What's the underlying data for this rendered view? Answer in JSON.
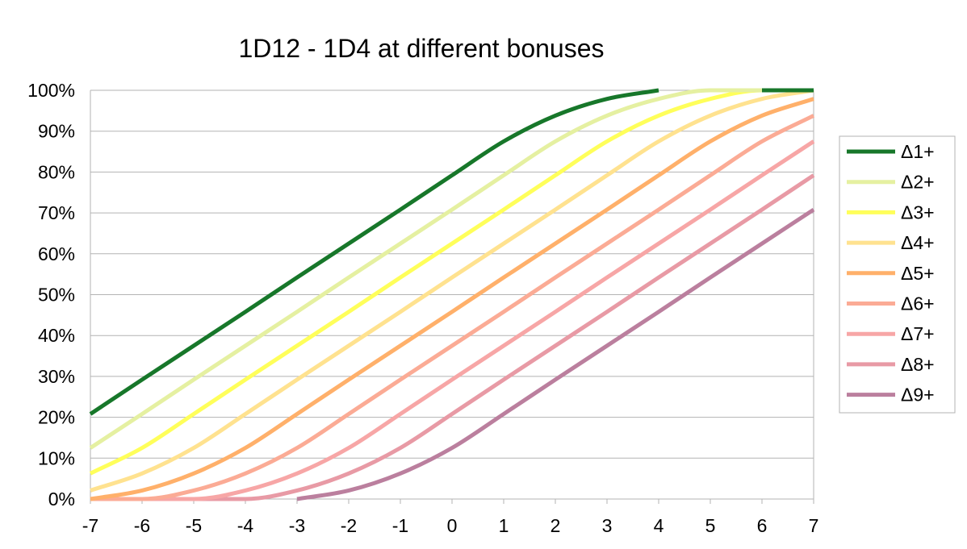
{
  "chart_data": {
    "type": "line",
    "title": "1D12 - 1D4 at different bonuses",
    "xlabel": "",
    "ylabel": "",
    "x": [
      -7,
      -6,
      -5,
      -4,
      -3,
      -2,
      -1,
      0,
      1,
      2,
      3,
      4,
      5,
      6,
      7
    ],
    "x_tick_labels": [
      "-7",
      "-6",
      "-5",
      "-4",
      "-3",
      "-2",
      "-1",
      "0",
      "1",
      "2",
      "3",
      "4",
      "5",
      "6",
      "7"
    ],
    "y_tick_labels": [
      "0%",
      "10%",
      "20%",
      "30%",
      "40%",
      "50%",
      "60%",
      "70%",
      "80%",
      "90%",
      "100%"
    ],
    "xlim": [
      -7,
      7
    ],
    "ylim": [
      0,
      100
    ],
    "grid": "horizontal",
    "legend_position": "right",
    "series": [
      {
        "name": "Δ1+",
        "color": "#17772a",
        "values": [
          20.8,
          29.2,
          37.5,
          45.8,
          54.2,
          62.5,
          70.8,
          79.2,
          87.5,
          93.8,
          97.9,
          100,
          null,
          100,
          100
        ]
      },
      {
        "name": "Δ2+",
        "color": "#e5f0a1",
        "values": [
          12.5,
          20.8,
          29.2,
          37.5,
          45.8,
          54.2,
          62.5,
          70.8,
          79.2,
          87.5,
          93.8,
          97.9,
          100,
          100,
          100
        ]
      },
      {
        "name": "Δ3+",
        "color": "#ffff5a",
        "values": [
          6.25,
          12.5,
          20.8,
          29.2,
          37.5,
          45.8,
          54.2,
          62.5,
          70.8,
          79.2,
          87.5,
          93.8,
          97.9,
          100,
          100
        ]
      },
      {
        "name": "Δ4+",
        "color": "#ffe28f",
        "values": [
          2.08,
          6.25,
          12.5,
          20.8,
          29.2,
          37.5,
          45.8,
          54.2,
          62.5,
          70.8,
          79.2,
          87.5,
          93.8,
          97.9,
          100
        ]
      },
      {
        "name": "Δ5+",
        "color": "#ffb06a",
        "values": [
          0,
          2.08,
          6.25,
          12.5,
          20.8,
          29.2,
          37.5,
          45.8,
          54.2,
          62.5,
          70.8,
          79.2,
          87.5,
          93.8,
          97.9
        ]
      },
      {
        "name": "Δ6+",
        "color": "#fbab95",
        "values": [
          0,
          0,
          2.08,
          6.25,
          12.5,
          20.8,
          29.2,
          37.5,
          45.8,
          54.2,
          62.5,
          70.8,
          79.2,
          87.5,
          93.8
        ]
      },
      {
        "name": "Δ7+",
        "color": "#f7a6a6",
        "values": [
          0,
          0,
          0,
          2.08,
          6.25,
          12.5,
          20.8,
          29.2,
          37.5,
          45.8,
          54.2,
          62.5,
          70.8,
          79.2,
          87.5
        ]
      },
      {
        "name": "Δ8+",
        "color": "#e89aa5",
        "values": [
          0,
          0,
          0,
          0,
          2.08,
          6.25,
          12.5,
          20.8,
          29.2,
          37.5,
          45.8,
          54.2,
          62.5,
          70.8,
          79.2
        ]
      },
      {
        "name": "Δ9+",
        "color": "#bb7f9e",
        "values": [
          null,
          null,
          null,
          null,
          0,
          2.08,
          6.25,
          12.5,
          20.8,
          29.2,
          37.5,
          45.8,
          54.2,
          62.5,
          70.8
        ]
      }
    ]
  }
}
